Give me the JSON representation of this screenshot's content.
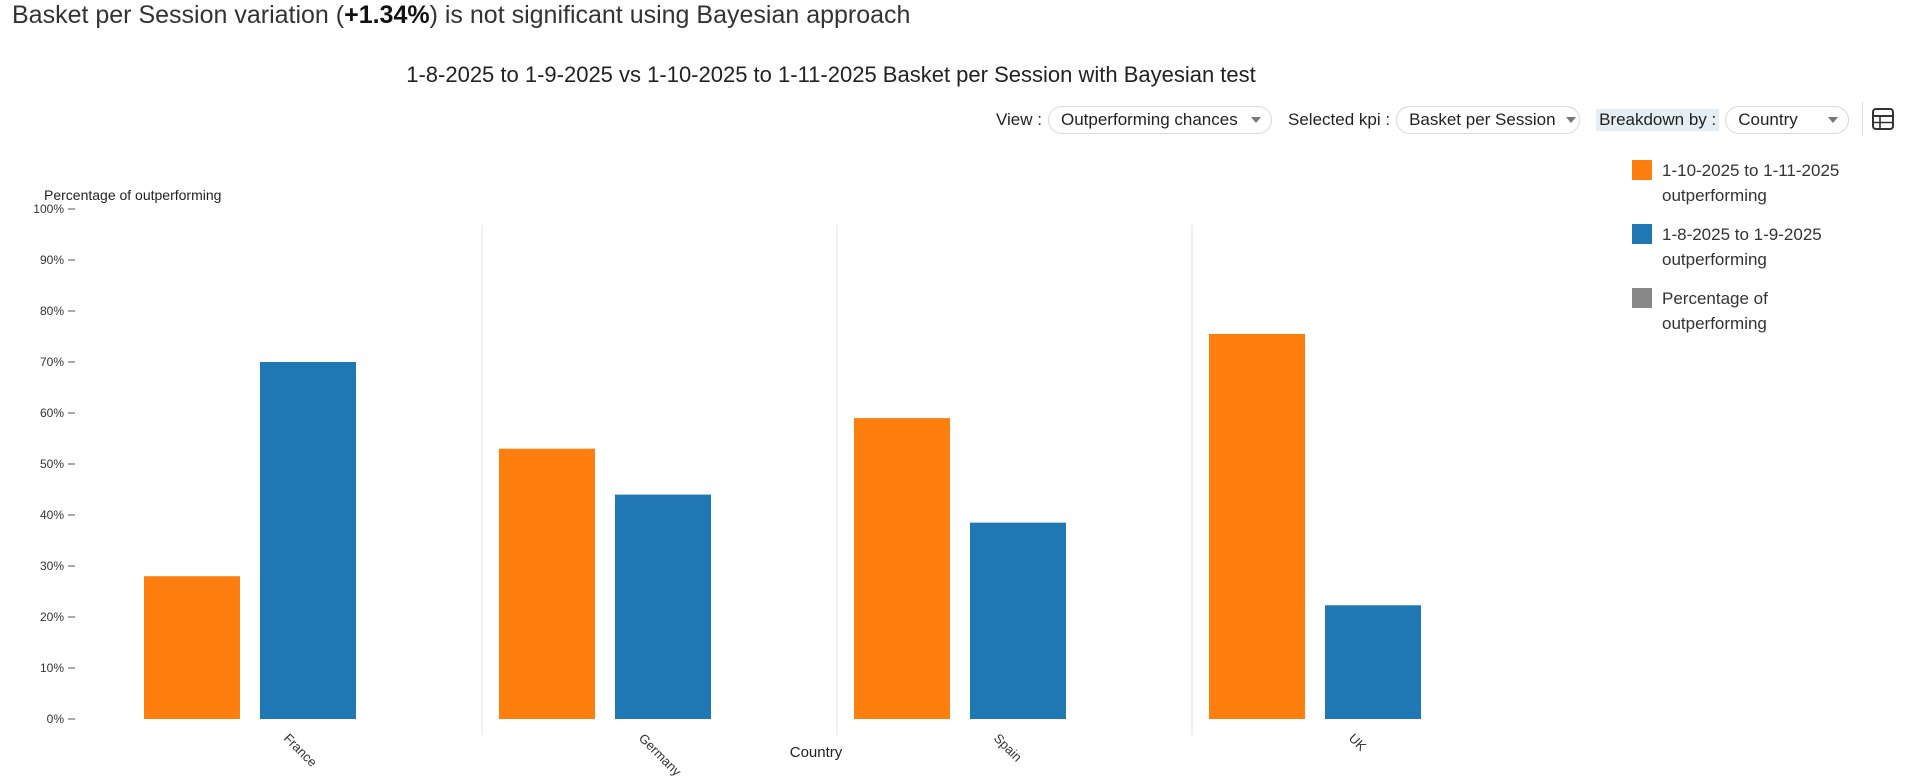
{
  "headline": {
    "prefix": "Basket per Session variation (",
    "variation": "+1.34%",
    "suffix": ") is not significant using Bayesian approach"
  },
  "chart_title": "1-8-2025 to 1-9-2025 vs 1-10-2025 to 1-11-2025 Basket per Session with Bayesian test",
  "controls": {
    "view_label": "View :",
    "view_value": "Outperforming chances",
    "kpi_label": "Selected kpi :",
    "kpi_value": "Basket per Session",
    "breakdown_label": "Breakdown by :",
    "breakdown_value": "Country"
  },
  "legend": [
    {
      "label": "1-10-2025 to 1-11-2025 outperforming",
      "color": "#ff7f0e"
    },
    {
      "label": "1-8-2025 to 1-9-2025 outperforming",
      "color": "#1f77b4"
    },
    {
      "label": "Percentage of outperforming",
      "color": "#888888"
    }
  ],
  "colors": {
    "orange": "#ff7f0e",
    "blue": "#1f77b4",
    "grey": "#888888"
  },
  "icons": {
    "table_toggle": "table-icon"
  },
  "chart_data": {
    "type": "bar",
    "title": "1-8-2025 to 1-9-2025 vs 1-10-2025 to 1-11-2025 Basket per Session with Bayesian test",
    "xlabel": "Country",
    "ylabel": "Percentage of outperforming",
    "categories": [
      "France",
      "Germany",
      "Spain",
      "UK"
    ],
    "series": [
      {
        "name": "1-10-2025 to 1-11-2025 outperforming",
        "color": "#ff7f0e",
        "values": [
          28,
          53,
          59,
          75.5
        ]
      },
      {
        "name": "1-8-2025 to 1-9-2025 outperforming",
        "color": "#1f77b4",
        "values": [
          70,
          44,
          38.5,
          22.3
        ]
      }
    ],
    "ylim": [
      0,
      100
    ],
    "yticks": [
      "0%",
      "10%",
      "20%",
      "30%",
      "40%",
      "50%",
      "60%",
      "70%",
      "80%",
      "90%",
      "100%"
    ],
    "grid": false,
    "legend_position": "top-right"
  }
}
